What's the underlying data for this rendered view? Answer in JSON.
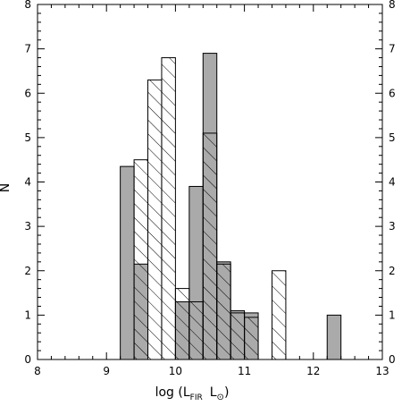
{
  "chart_data": {
    "type": "histogram",
    "xlabel": "log (L",
    "xlabel_sub": "FIR",
    "xlabel_unit": "L",
    "xlabel_unit_sub": "⊙",
    "xlabel_close": ")",
    "ylabel": "N",
    "xlim": [
      8,
      13
    ],
    "ylim": [
      0,
      8
    ],
    "x_ticks": [
      8,
      9,
      10,
      11,
      12,
      13
    ],
    "y_ticks": [
      0,
      1,
      2,
      3,
      4,
      5,
      6,
      7,
      8
    ],
    "grid": false,
    "series": [
      {
        "fill": "#aaaaaa",
        "bins": [
          {
            "x0": 9.2,
            "x1": 9.4,
            "value": 4.35
          },
          {
            "x0": 9.4,
            "x1": 9.6,
            "value": 2.15
          },
          {
            "x0": 9.6,
            "x1": 10.0,
            "value": 0
          },
          {
            "x0": 10.0,
            "x1": 10.2,
            "value": 1.3
          },
          {
            "x0": 10.2,
            "x1": 10.4,
            "value": 3.9
          },
          {
            "x0": 10.4,
            "x1": 10.6,
            "value": 6.9
          },
          {
            "x0": 10.6,
            "x1": 10.8,
            "value": 2.2
          },
          {
            "x0": 10.8,
            "x1": 11.0,
            "value": 1.1
          },
          {
            "x0": 11.0,
            "x1": 11.2,
            "value": 1.05
          },
          {
            "x0": 12.2,
            "x1": 12.4,
            "value": 1.0
          }
        ]
      },
      {
        "fill": "hatched",
        "bins": [
          {
            "x0": 9.4,
            "x1": 9.6,
            "value": 4.5
          },
          {
            "x0": 9.6,
            "x1": 9.8,
            "value": 6.3
          },
          {
            "x0": 9.8,
            "x1": 10.0,
            "value": 6.8
          },
          {
            "x0": 10.0,
            "x1": 10.2,
            "value": 1.6
          },
          {
            "x0": 10.2,
            "x1": 10.4,
            "value": 1.3
          },
          {
            "x0": 10.4,
            "x1": 10.6,
            "value": 5.1
          },
          {
            "x0": 10.6,
            "x1": 10.8,
            "value": 2.15
          },
          {
            "x0": 10.8,
            "x1": 11.0,
            "value": 1.05
          },
          {
            "x0": 11.0,
            "x1": 11.2,
            "value": 0.95
          },
          {
            "x0": 11.4,
            "x1": 11.6,
            "value": 2.0
          }
        ]
      }
    ]
  }
}
